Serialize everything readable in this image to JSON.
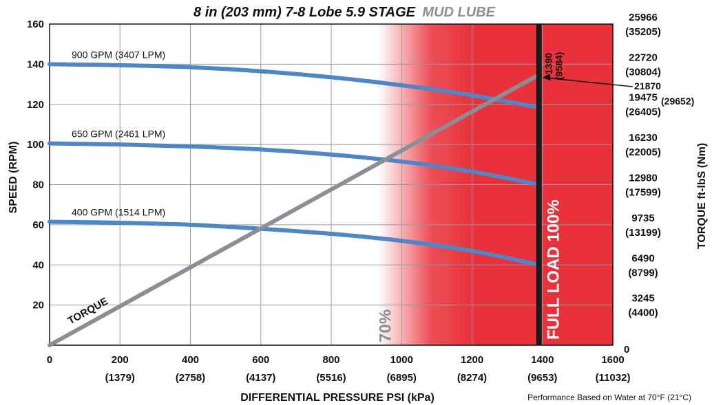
{
  "chart_data": {
    "type": "line",
    "title": "8 in (203 mm) 7-8 Lobe 5.9 STAGE",
    "title_accent": "MUD LUBE",
    "xlabel": "DIFFERENTIAL PRESSURE  PSI (kPa)",
    "ylabel": "SPEED (RPM)",
    "y2label": "TORQUE ft-lbS (Nm)",
    "xlim": [
      0,
      1600
    ],
    "ylim": [
      0,
      160
    ],
    "y2lim": [
      0,
      25966
    ],
    "grid": true,
    "x_ticks": [
      {
        "value": 0,
        "label": "0",
        "sub": ""
      },
      {
        "value": 200,
        "label": "200",
        "sub": "(1379)"
      },
      {
        "value": 400,
        "label": "400",
        "sub": "(2758)"
      },
      {
        "value": 600,
        "label": "600",
        "sub": "(4137)"
      },
      {
        "value": 800,
        "label": "800",
        "sub": "(5516)"
      },
      {
        "value": 1000,
        "label": "1000",
        "sub": "(6895)"
      },
      {
        "value": 1200,
        "label": "1200",
        "sub": "(8274)"
      },
      {
        "value": 1400,
        "label": "1400",
        "sub": "(9653)"
      },
      {
        "value": 1600,
        "label": "1600",
        "sub": "(11032)"
      }
    ],
    "y_ticks": [
      20,
      40,
      60,
      80,
      100,
      120,
      140,
      160
    ],
    "y2_ticks": [
      {
        "value": 0,
        "label": "0",
        "sub": ""
      },
      {
        "value": 3245,
        "label": "3245",
        "sub": "(4400)"
      },
      {
        "value": 6490,
        "label": "6490",
        "sub": "(8799)"
      },
      {
        "value": 9735,
        "label": "9735",
        "sub": "(13199)"
      },
      {
        "value": 12980,
        "label": "12980",
        "sub": "(17599)"
      },
      {
        "value": 16230,
        "label": "16230",
        "sub": "(22005)"
      },
      {
        "value": 19475,
        "label": "19475",
        "sub": "(26405)"
      },
      {
        "value": 22720,
        "label": "22720",
        "sub": "(30804)"
      },
      {
        "value": 25966,
        "label": "25966",
        "sub": "(35205)"
      }
    ],
    "speed_series": [
      {
        "name": "900 GPM (3407 LPM)",
        "x": [
          0,
          200,
          400,
          600,
          800,
          1000,
          1200,
          1390
        ],
        "y": [
          140,
          139.5,
          138.5,
          136.5,
          133.5,
          129.5,
          124.5,
          118.5
        ]
      },
      {
        "name": "650 GPM (2461 LPM)",
        "x": [
          0,
          200,
          400,
          600,
          800,
          1000,
          1200,
          1390
        ],
        "y": [
          100.5,
          100,
          99,
          97.5,
          95,
          91.5,
          86.5,
          80
        ]
      },
      {
        "name": "400 GPM (1514 LPM)",
        "x": [
          0,
          200,
          400,
          600,
          800,
          1000,
          1200,
          1390
        ],
        "y": [
          61.5,
          61,
          60,
          58,
          55.5,
          52,
          47,
          40
        ]
      }
    ],
    "torque_series": {
      "name": "TORQUE",
      "x": [
        0,
        1390
      ],
      "y2": [
        0,
        21870
      ]
    },
    "torque_callout": {
      "value": "21870",
      "sub": "(29652)"
    },
    "zone_70": {
      "label": "70%",
      "x": 973
    },
    "full_load": {
      "label": "FULL LOAD 100%",
      "x": 1390,
      "value": "1390",
      "sub": "(9584)"
    },
    "footnote": "Performance Based on Water at 70°F (21°C)",
    "colors": {
      "speed": "#4f86c6",
      "torque": "#8a8f96",
      "zone": "#e8313a",
      "full_load_line": "#1a1a1a",
      "grid": "#9a9a9a"
    }
  }
}
